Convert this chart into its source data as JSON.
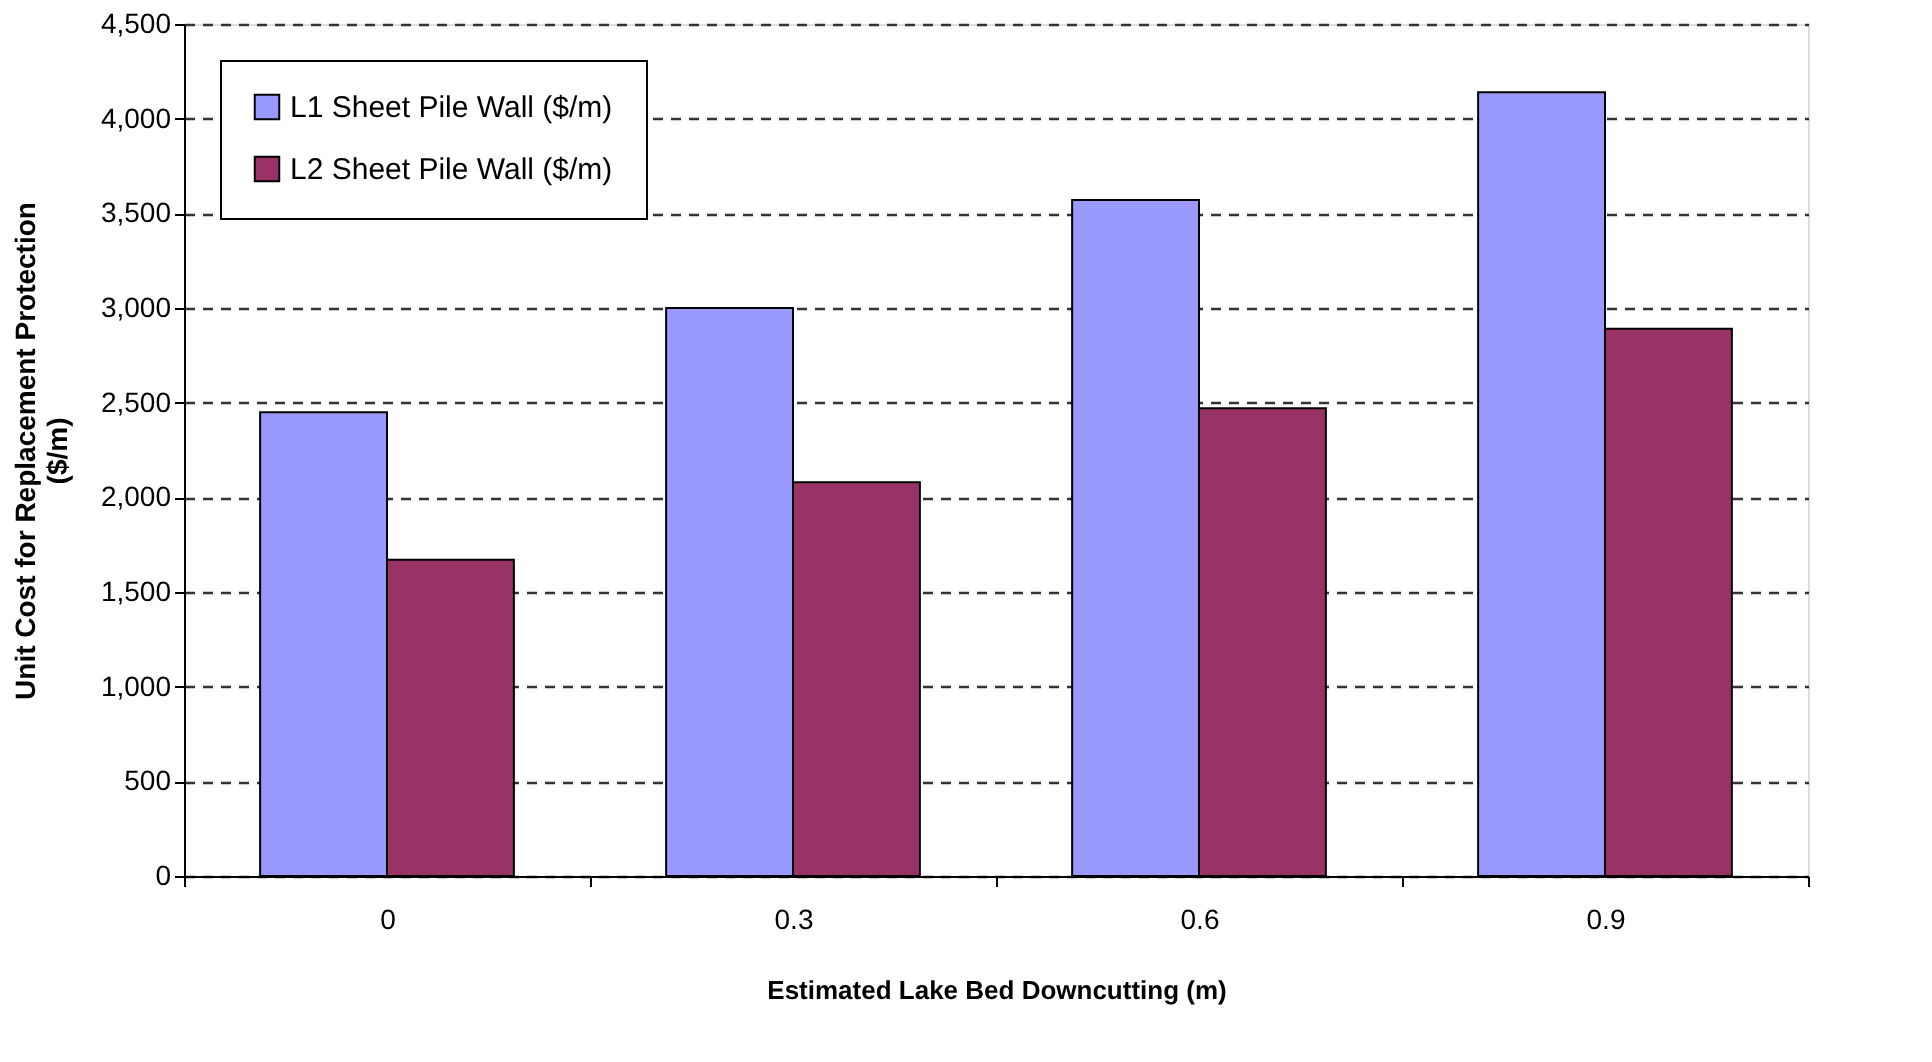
{
  "chart_data": {
    "type": "bar",
    "xlabel": "Estimated Lake Bed Downcutting (m)",
    "ylabel": "Unit Cost for Replacement Protection ($/m)",
    "categories": [
      "0",
      "0.3",
      "0.6",
      "0.9"
    ],
    "series": [
      {
        "name": "L1 Sheet Pile Wall ($/m)",
        "color": "#9999ff",
        "values": [
          2450,
          3000,
          3570,
          4140
        ]
      },
      {
        "name": "L2 Sheet Pile Wall ($/m)",
        "color": "#993366",
        "values": [
          1670,
          2080,
          2470,
          2890
        ]
      }
    ],
    "ylim": [
      0,
      4500
    ],
    "yticks": [
      0,
      {
        "value": 500,
        "label": "500"
      },
      {
        "value": 1000,
        "label": "1,000"
      },
      {
        "value": 1500,
        "label": "1,500"
      },
      {
        "value": 2000,
        "label": "2,000"
      },
      {
        "value": 2500,
        "label": "2,500"
      },
      {
        "value": 3000,
        "label": "3,000"
      },
      {
        "value": 3500,
        "label": "3,500"
      },
      {
        "value": 4000,
        "label": "4,000"
      },
      {
        "value": 4500,
        "label": "4,500"
      }
    ],
    "grid": "y",
    "legend": "top left"
  }
}
